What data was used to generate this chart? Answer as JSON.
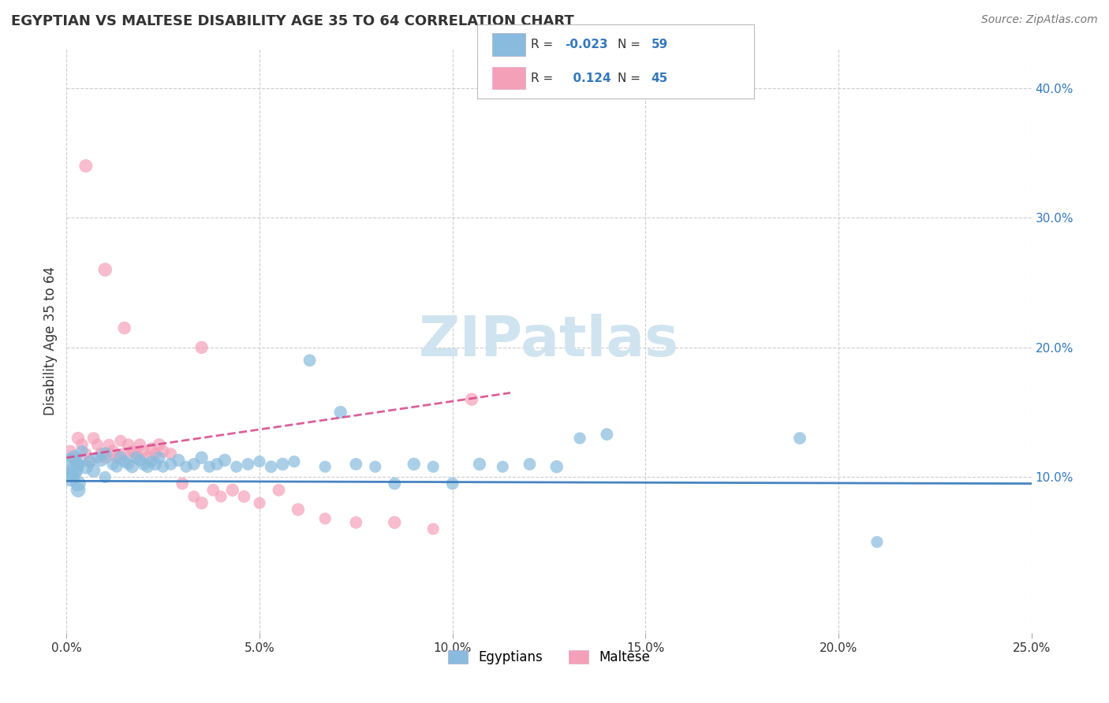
{
  "title": "EGYPTIAN VS MALTESE DISABILITY AGE 35 TO 64 CORRELATION CHART",
  "source_text": "Source: ZipAtlas.com",
  "ylabel": "Disability Age 35 to 64",
  "xlim": [
    0.0,
    0.25
  ],
  "ylim": [
    -0.02,
    0.43
  ],
  "xtick_labels": [
    "0.0%",
    "5.0%",
    "10.0%",
    "15.0%",
    "20.0%",
    "25.0%"
  ],
  "xtick_vals": [
    0.0,
    0.05,
    0.1,
    0.15,
    0.2,
    0.25
  ],
  "ytick_labels": [
    "10.0%",
    "20.0%",
    "30.0%",
    "40.0%"
  ],
  "ytick_vals": [
    0.1,
    0.2,
    0.3,
    0.4
  ],
  "egyptian_color": "#88bbdd",
  "maltese_color": "#f4a0b8",
  "egyptian_line_color": "#3377bb",
  "maltese_line_color": "#d44488",
  "watermark_color": "#d0e4f0",
  "background_color": "#ffffff",
  "grid_color": "#cccccc",
  "egyptians_x": [
    0.002,
    0.003,
    0.004,
    0.005,
    0.006,
    0.007,
    0.008,
    0.009,
    0.01,
    0.01,
    0.012,
    0.013,
    0.014,
    0.015,
    0.016,
    0.017,
    0.018,
    0.019,
    0.02,
    0.021,
    0.022,
    0.023,
    0.024,
    0.025,
    0.027,
    0.029,
    0.031,
    0.033,
    0.035,
    0.037,
    0.039,
    0.041,
    0.044,
    0.047,
    0.05,
    0.053,
    0.056,
    0.059,
    0.063,
    0.067,
    0.071,
    0.075,
    0.08,
    0.085,
    0.09,
    0.095,
    0.1,
    0.107,
    0.113,
    0.12,
    0.127,
    0.133,
    0.001,
    0.002,
    0.003,
    0.003,
    0.001,
    0.14,
    0.19,
    0.21
  ],
  "egyptians_y": [
    0.115,
    0.11,
    0.12,
    0.108,
    0.112,
    0.105,
    0.115,
    0.113,
    0.118,
    0.1,
    0.11,
    0.108,
    0.115,
    0.112,
    0.11,
    0.108,
    0.115,
    0.113,
    0.11,
    0.108,
    0.112,
    0.11,
    0.115,
    0.108,
    0.11,
    0.113,
    0.108,
    0.11,
    0.115,
    0.108,
    0.11,
    0.113,
    0.108,
    0.11,
    0.112,
    0.108,
    0.11,
    0.112,
    0.19,
    0.108,
    0.15,
    0.11,
    0.108,
    0.095,
    0.11,
    0.108,
    0.095,
    0.11,
    0.108,
    0.11,
    0.108,
    0.13,
    0.1,
    0.105,
    0.095,
    0.09,
    0.108,
    0.133,
    0.13,
    0.05
  ],
  "egyptians_size": [
    200,
    150,
    120,
    180,
    130,
    160,
    120,
    140,
    150,
    120,
    130,
    120,
    140,
    130,
    120,
    140,
    130,
    120,
    140,
    130,
    120,
    140,
    130,
    120,
    130,
    140,
    120,
    130,
    140,
    120,
    130,
    140,
    120,
    130,
    120,
    130,
    140,
    120,
    130,
    120,
    140,
    130,
    120,
    130,
    140,
    120,
    130,
    140,
    120,
    130,
    140,
    120,
    300,
    250,
    200,
    180,
    600,
    130,
    130,
    120
  ],
  "maltese_x": [
    0.001,
    0.002,
    0.003,
    0.004,
    0.005,
    0.006,
    0.007,
    0.008,
    0.009,
    0.01,
    0.011,
    0.012,
    0.013,
    0.014,
    0.015,
    0.016,
    0.017,
    0.018,
    0.019,
    0.02,
    0.021,
    0.022,
    0.023,
    0.024,
    0.025,
    0.027,
    0.03,
    0.033,
    0.035,
    0.038,
    0.04,
    0.043,
    0.046,
    0.05,
    0.055,
    0.06,
    0.067,
    0.075,
    0.085,
    0.095,
    0.105,
    0.035,
    0.015,
    0.01,
    0.005
  ],
  "maltese_y": [
    0.12,
    0.115,
    0.13,
    0.125,
    0.118,
    0.112,
    0.13,
    0.125,
    0.118,
    0.115,
    0.125,
    0.12,
    0.115,
    0.128,
    0.118,
    0.125,
    0.12,
    0.118,
    0.125,
    0.12,
    0.115,
    0.122,
    0.118,
    0.125,
    0.12,
    0.118,
    0.095,
    0.085,
    0.08,
    0.09,
    0.085,
    0.09,
    0.085,
    0.08,
    0.09,
    0.075,
    0.068,
    0.065,
    0.065,
    0.06,
    0.16,
    0.2,
    0.215,
    0.26,
    0.34
  ],
  "maltese_size": [
    130,
    120,
    140,
    130,
    120,
    140,
    130,
    120,
    140,
    130,
    120,
    140,
    130,
    120,
    140,
    130,
    120,
    140,
    130,
    120,
    140,
    130,
    120,
    140,
    130,
    120,
    130,
    120,
    140,
    130,
    120,
    140,
    130,
    120,
    130,
    140,
    120,
    130,
    140,
    120,
    140,
    140,
    140,
    160,
    150
  ],
  "egyptian_trendline_x": [
    0.0,
    0.25
  ],
  "egyptian_trendline_y": [
    0.097,
    0.095
  ],
  "maltese_trendline_x": [
    0.0,
    0.115
  ],
  "maltese_trendline_y": [
    0.115,
    0.165
  ]
}
